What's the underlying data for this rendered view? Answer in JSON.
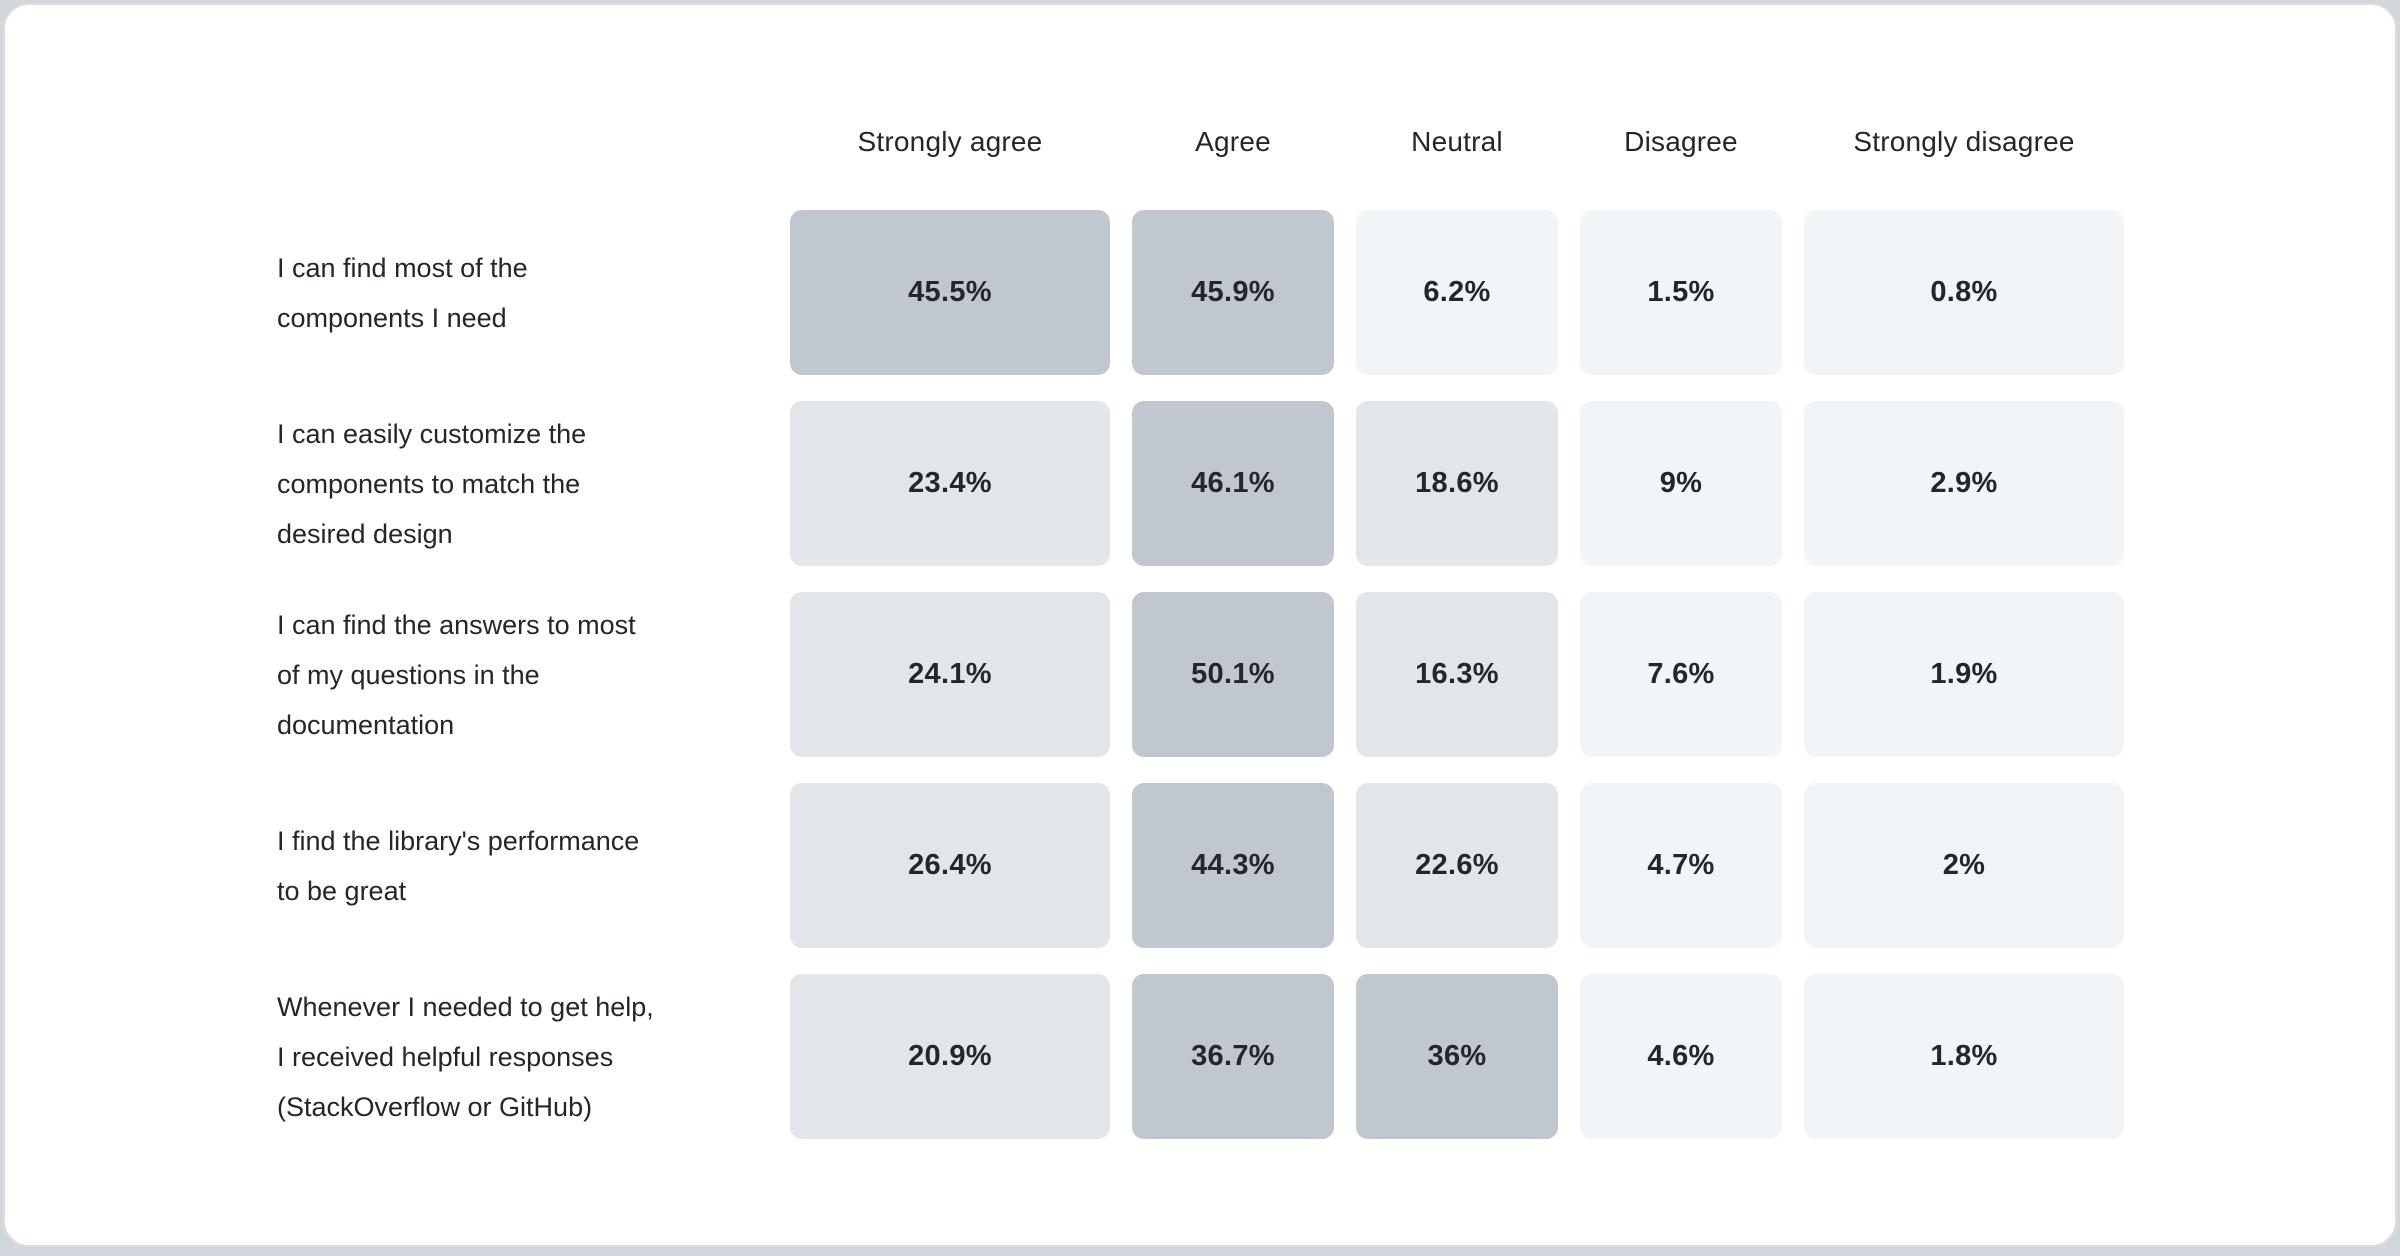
{
  "page": {
    "background_color": "#d0d6db",
    "card_background": "#ffffff",
    "card_border_color": "#dadfe4"
  },
  "chart_data": {
    "type": "heatmap",
    "title": "",
    "columns": [
      "Strongly agree",
      "Agree",
      "Neutral",
      "Disagree",
      "Strongly disagree"
    ],
    "rows": [
      {
        "label": "I can find most of the\ncomponents I need",
        "display": [
          "45.5%",
          "45.9%",
          "6.2%",
          "1.5%",
          "0.8%"
        ],
        "values": [
          45.5,
          45.9,
          6.2,
          1.5,
          0.8
        ],
        "levels": [
          "high",
          "high",
          "low",
          "low",
          "low"
        ]
      },
      {
        "label": "I can easily customize the\ncomponents to match the\ndesired design",
        "display": [
          "23.4%",
          "46.1%",
          "18.6%",
          "9%",
          "2.9%"
        ],
        "values": [
          23.4,
          46.1,
          18.6,
          9,
          2.9
        ],
        "levels": [
          "mid",
          "high",
          "mid",
          "low",
          "low"
        ]
      },
      {
        "label": "I can find the answers to most\nof my questions in the\ndocumentation",
        "display": [
          "24.1%",
          "50.1%",
          "16.3%",
          "7.6%",
          "1.9%"
        ],
        "values": [
          24.1,
          50.1,
          16.3,
          7.6,
          1.9
        ],
        "levels": [
          "mid",
          "high",
          "mid",
          "low",
          "low"
        ]
      },
      {
        "label": "I find the library's performance\nto be great",
        "display": [
          "26.4%",
          "44.3%",
          "22.6%",
          "4.7%",
          "2%"
        ],
        "values": [
          26.4,
          44.3,
          22.6,
          4.7,
          2
        ],
        "levels": [
          "mid",
          "high",
          "mid",
          "low",
          "low"
        ]
      },
      {
        "label": "Whenever I needed to get help,\nI received helpful responses\n(StackOverflow or GitHub)",
        "display": [
          "20.9%",
          "36.7%",
          "36%",
          "4.6%",
          "1.8%"
        ],
        "values": [
          20.9,
          36.7,
          36,
          4.6,
          1.8
        ],
        "levels": [
          "mid",
          "high",
          "high",
          "low",
          "low"
        ]
      }
    ],
    "cell_colors": {
      "high": "#c1c7ce",
      "mid": "#e2e6ea",
      "low": "#f2f5f8"
    },
    "text_color": "#21272a",
    "legend_position": "none",
    "grid": "off",
    "value_format": "percent"
  }
}
